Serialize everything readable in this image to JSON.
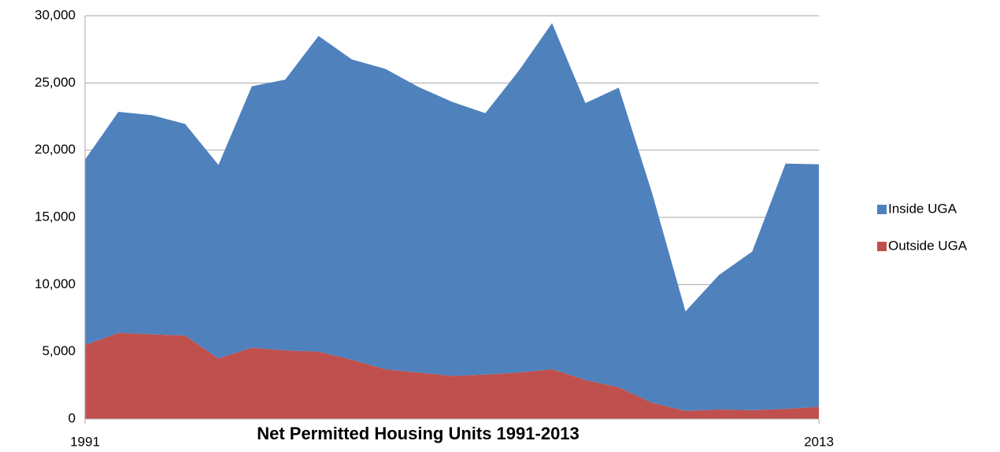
{
  "chart_data": {
    "type": "stacked_area",
    "title": "Net Permitted Housing Units 1991-2013",
    "x": [
      1991,
      1992,
      1993,
      1994,
      1995,
      1996,
      1997,
      1998,
      1999,
      2000,
      2001,
      2002,
      2003,
      2004,
      2005,
      2006,
      2007,
      2008,
      2009,
      2010,
      2011,
      2012,
      2013
    ],
    "xlim": [
      1991,
      2013
    ],
    "xticks": [
      1991,
      2013
    ],
    "ylim": [
      0,
      30000
    ],
    "yticks": [
      0,
      {
        "value": 5000,
        "label": "5,000"
      },
      {
        "value": 10000,
        "label": "10,000"
      },
      {
        "value": 15000,
        "label": "15,000"
      },
      {
        "value": 20000,
        "label": "20,000"
      },
      {
        "value": 25000,
        "label": "25,000"
      },
      {
        "value": 30000,
        "label": "30,000"
      }
    ],
    "grid": true,
    "legend": "right",
    "series": [
      {
        "name": "Inside UGA",
        "color": "#4f81bd",
        "values": [
          13800,
          16450,
          16300,
          15750,
          14400,
          19450,
          20150,
          23500,
          22350,
          22350,
          21250,
          20400,
          19450,
          22450,
          25750,
          20600,
          22300,
          15600,
          7400,
          10000,
          11800,
          18250,
          18050
        ]
      },
      {
        "name": "Outside UGA",
        "color": "#c0504d",
        "values": [
          5500,
          6400,
          6300,
          6200,
          4500,
          5300,
          5100,
          5000,
          4400,
          3700,
          3450,
          3200,
          3300,
          3450,
          3700,
          2900,
          2350,
          1200,
          600,
          700,
          650,
          750,
          900
        ]
      }
    ]
  }
}
